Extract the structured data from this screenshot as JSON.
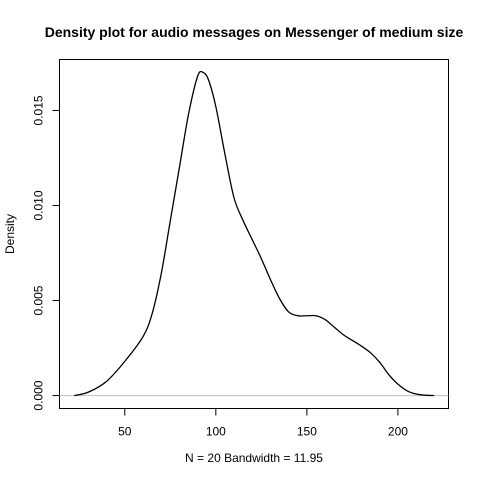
{
  "chart_data": {
    "type": "line",
    "title": "Density plot for audio messages on Messenger of medium size",
    "xlabel": "N = 20   Bandwidth = 11.95",
    "ylabel": "Density",
    "xlim": [
      14.15,
      227.77
    ],
    "ylim": [
      -0.00068,
      0.01768
    ],
    "x_ticks": [
      50,
      100,
      150,
      200
    ],
    "y_ticks": [
      0.0,
      0.005,
      0.01,
      0.015
    ],
    "x_tick_labels": [
      "50",
      "100",
      "150",
      "200"
    ],
    "y_tick_labels": [
      "0.000",
      "0.005",
      "0.010",
      "0.015"
    ],
    "series": [
      {
        "values": [
          [
            22.25,
            0.0
          ],
          [
            30,
            0.00018
          ],
          [
            40,
            0.00075
          ],
          [
            50,
            0.0018
          ],
          [
            60,
            0.0031
          ],
          [
            65,
            0.0043
          ],
          [
            70,
            0.0064
          ],
          [
            75,
            0.0092
          ],
          [
            80,
            0.012
          ],
          [
            85,
            0.0148
          ],
          [
            90,
            0.0168
          ],
          [
            93,
            0.017
          ],
          [
            96,
            0.0166
          ],
          [
            100,
            0.0152
          ],
          [
            105,
            0.0127
          ],
          [
            110,
            0.0104
          ],
          [
            115,
            0.0092
          ],
          [
            120,
            0.0082
          ],
          [
            125,
            0.0072
          ],
          [
            130,
            0.0061
          ],
          [
            135,
            0.0051
          ],
          [
            140,
            0.0044
          ],
          [
            145,
            0.0042
          ],
          [
            150,
            0.0042
          ],
          [
            155,
            0.0042
          ],
          [
            160,
            0.004
          ],
          [
            165,
            0.0036
          ],
          [
            170,
            0.0032
          ],
          [
            175,
            0.0029
          ],
          [
            180,
            0.0026
          ],
          [
            185,
            0.00225
          ],
          [
            190,
            0.00175
          ],
          [
            195,
            0.0011
          ],
          [
            200,
            0.0006
          ],
          [
            205,
            0.00025
          ],
          [
            210,
            8e-05
          ],
          [
            215,
            2e-05
          ],
          [
            219.9,
            0.0
          ]
        ]
      }
    ],
    "grid": false,
    "zero_line": true,
    "colors": {
      "curve": "#000000",
      "zero_line": "#bebebe",
      "axis": "#000000"
    }
  }
}
